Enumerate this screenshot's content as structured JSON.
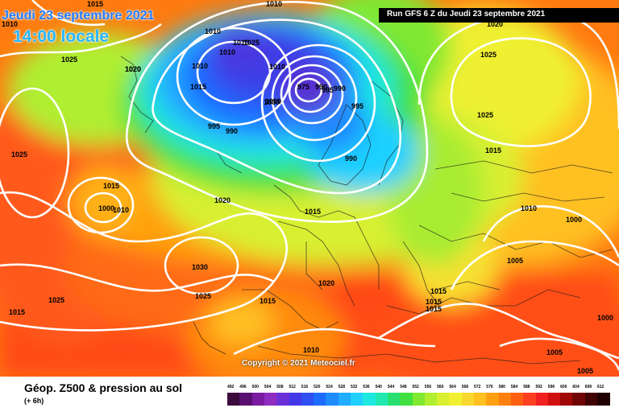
{
  "header": {
    "date_title": "Jeudi 23 septembre 2021",
    "time_title": "14:00 locale",
    "run_info": "Run GFS 6 Z du Jeudi 23 septembre 2021"
  },
  "map": {
    "copyright": "Copyright © 2021 Meteociel.fr",
    "isobar_labels": [
      "1015",
      "1010",
      "1010",
      "1025",
      "1020",
      "1025",
      "1025",
      "1010",
      "1010",
      "1010",
      "1015",
      "1010",
      "1010",
      "1000",
      "995",
      "990",
      "975",
      "990",
      "985",
      "990",
      "1000",
      "995",
      "1020",
      "1025",
      "1025",
      "1015",
      "1015",
      "1015",
      "990",
      "1020",
      "1025",
      "1015",
      "1010",
      "1000",
      "1030",
      "1025",
      "1010",
      "1000",
      "1005",
      "1020",
      "1015",
      "1015",
      "1015",
      "1015",
      "1000",
      "1010",
      "1005",
      "1005",
      "1020"
    ]
  },
  "footer": {
    "title": "Géop. Z500 & pression au sol",
    "subtitle": "(+ 6h)"
  },
  "legend": {
    "values": [
      "492",
      "496",
      "500",
      "504",
      "508",
      "512",
      "516",
      "520",
      "524",
      "528",
      "532",
      "536",
      "540",
      "544",
      "548",
      "552",
      "556",
      "560",
      "564",
      "568",
      "572",
      "576",
      "580",
      "584",
      "588",
      "592",
      "596",
      "600",
      "604",
      "608",
      "612"
    ],
    "colors": [
      "#3b0b3b",
      "#5a1070",
      "#7a1aa0",
      "#8f2cc0",
      "#6b2fd8",
      "#4338e8",
      "#2f4ff0",
      "#1e6bff",
      "#1f8cff",
      "#20adff",
      "#1fd0ff",
      "#1ee8e0",
      "#20e8b0",
      "#28e070",
      "#40e040",
      "#80e830",
      "#b0ee30",
      "#d8f030",
      "#f0f030",
      "#f8d830",
      "#ffc020",
      "#ffa010",
      "#ff8010",
      "#ff6010",
      "#ff4020",
      "#f02020",
      "#d01010",
      "#a00808",
      "#700404",
      "#400202",
      "#200000"
    ]
  },
  "colors": {
    "run_box": "#000000",
    "date_title": "#1f7bff",
    "time_title": "#29b6ff",
    "isobar": "#ffffff"
  }
}
